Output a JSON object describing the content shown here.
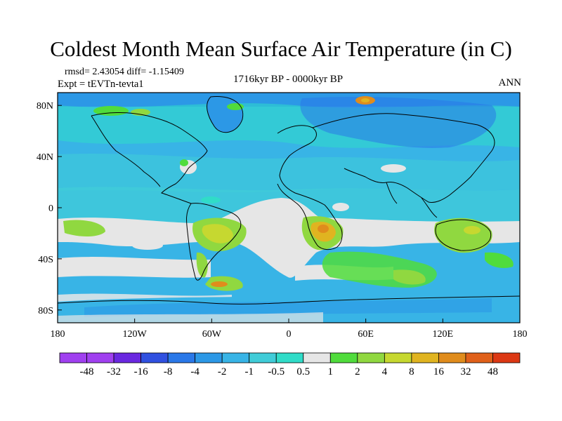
{
  "title": "Coldest Month Mean Surface Air Temperature (in C)",
  "stats_text": "rmsd= 2.43054  diff= -1.15409",
  "experiment_text": "Expt = tEVTn-tevta1",
  "period_text": "1716kyr BP - 0000kyr BP",
  "season_text": "ANN",
  "map": {
    "lon_ticks": [
      "180",
      "120W",
      "60W",
      "0",
      "60E",
      "120E",
      "180"
    ],
    "lat_ticks": [
      "80N",
      "40N",
      "0",
      "40S",
      "80S"
    ],
    "lat_tick_values": [
      80,
      40,
      0,
      -40,
      -80
    ]
  },
  "colorbar": {
    "labels": [
      "-48",
      "-32",
      "-16",
      "-8",
      "-4",
      "-2",
      "-1",
      "-0.5",
      "0.5",
      "1",
      "2",
      "4",
      "8",
      "16",
      "32",
      "48"
    ],
    "colors": [
      "#a040f0",
      "#6a28e0",
      "#3050e0",
      "#2a78e8",
      "#2c98e6",
      "#38b4e6",
      "#40ccd8",
      "#30dcc8",
      "#e6e6e6",
      "#50dc3c",
      "#90d840",
      "#c6d830",
      "#e0b420",
      "#e08c1c",
      "#e0601a",
      "#dc3814"
    ]
  }
}
